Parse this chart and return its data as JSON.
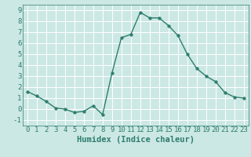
{
  "x": [
    0,
    1,
    2,
    3,
    4,
    5,
    6,
    7,
    8,
    9,
    10,
    11,
    12,
    13,
    14,
    15,
    16,
    17,
    18,
    19,
    20,
    21,
    22,
    23
  ],
  "y": [
    1.6,
    1.2,
    0.7,
    0.1,
    0.0,
    -0.3,
    -0.2,
    0.3,
    -0.5,
    3.3,
    6.5,
    6.8,
    8.8,
    8.3,
    8.3,
    7.6,
    6.7,
    5.0,
    3.7,
    3.0,
    2.5,
    1.5,
    1.1,
    1.0
  ],
  "line_color": "#2d7d6e",
  "marker": "o",
  "markersize": 2.5,
  "linewidth": 1.0,
  "xlabel": "Humidex (Indice chaleur)",
  "xlim": [
    -0.5,
    23.5
  ],
  "ylim": [
    -1.5,
    9.5
  ],
  "xticks": [
    0,
    1,
    2,
    3,
    4,
    5,
    6,
    7,
    8,
    9,
    10,
    11,
    12,
    13,
    14,
    15,
    16,
    17,
    18,
    19,
    20,
    21,
    22,
    23
  ],
  "yticks": [
    -1,
    0,
    1,
    2,
    3,
    4,
    5,
    6,
    7,
    8,
    9
  ],
  "bg_color": "#cce8e4",
  "grid_color": "#ffffff",
  "tick_color": "#2d7d6e",
  "label_color": "#2d7d6e",
  "xlabel_fontsize": 7.5,
  "tick_fontsize": 6.5
}
